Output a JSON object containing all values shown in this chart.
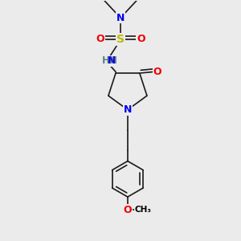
{
  "background_color": "#ebebeb",
  "atom_colors": {
    "C": "#000000",
    "N": "#0000ee",
    "O": "#ee0000",
    "S": "#bbbb00",
    "H": "#5f8080"
  },
  "bond_color": "#1a1a1a",
  "bond_width": 1.2,
  "figsize": [
    3.0,
    3.0
  ],
  "dpi": 100
}
